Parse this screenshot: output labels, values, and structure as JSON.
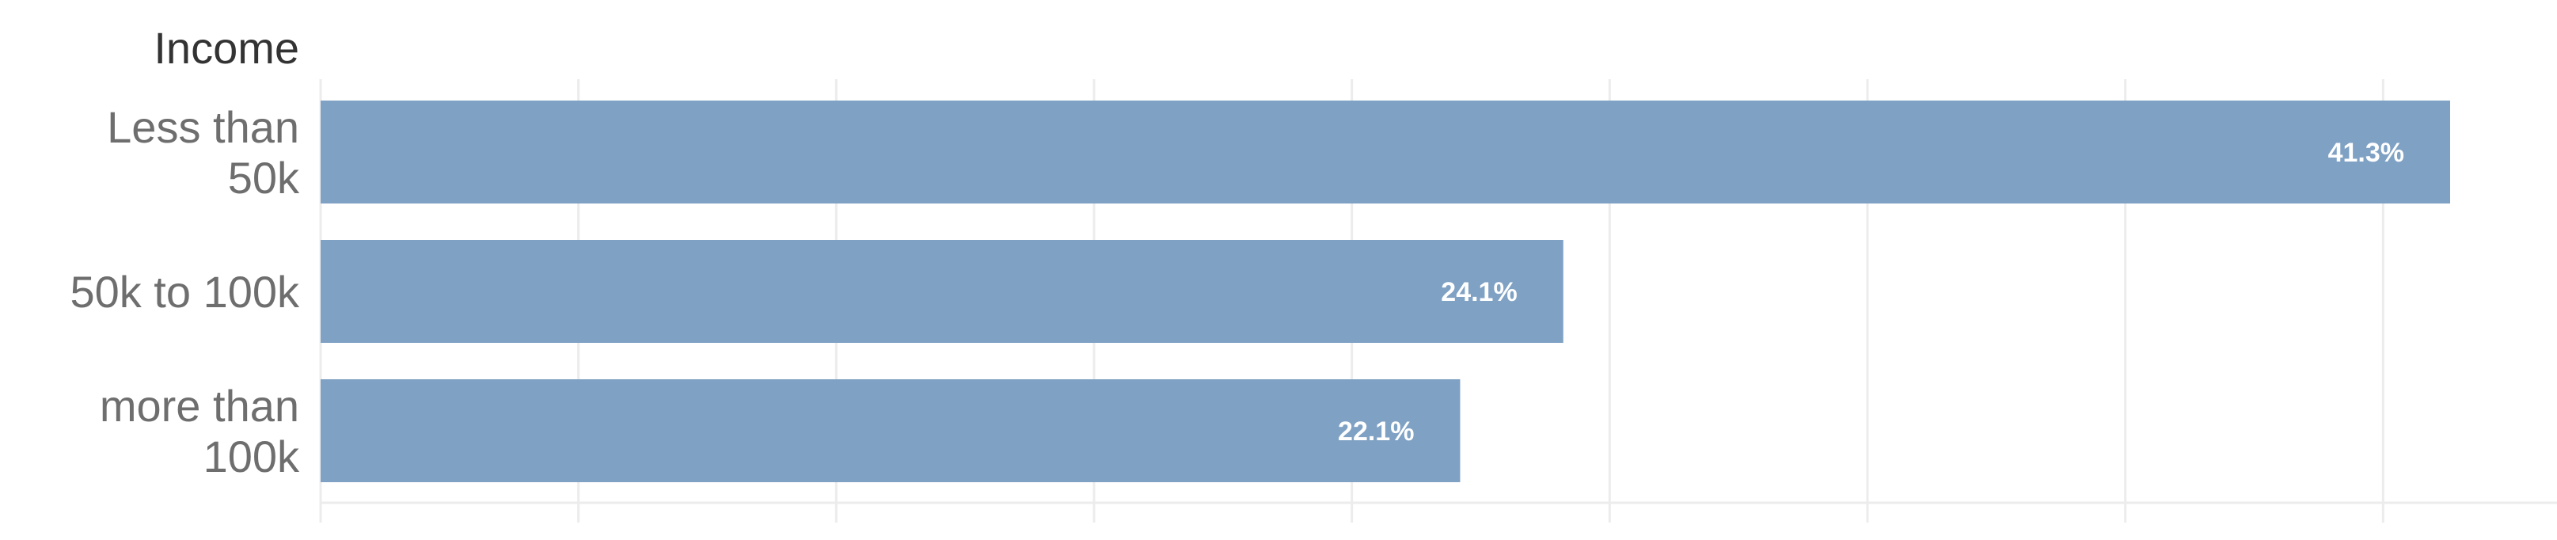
{
  "chart_data": {
    "type": "bar",
    "orientation": "horizontal",
    "category_header": "Income",
    "categories": [
      [
        "Less than",
        "50k"
      ],
      [
        "50k to 100k"
      ],
      [
        "more than",
        "100k"
      ]
    ],
    "values": [
      41.3,
      24.1,
      22.1
    ],
    "data_labels": [
      "41.3%",
      "24.1%",
      "22.1%"
    ],
    "unit": "%",
    "xlim": [
      0,
      45
    ],
    "grid": true,
    "legend": "none",
    "bar_color": "#7fa1c4"
  }
}
